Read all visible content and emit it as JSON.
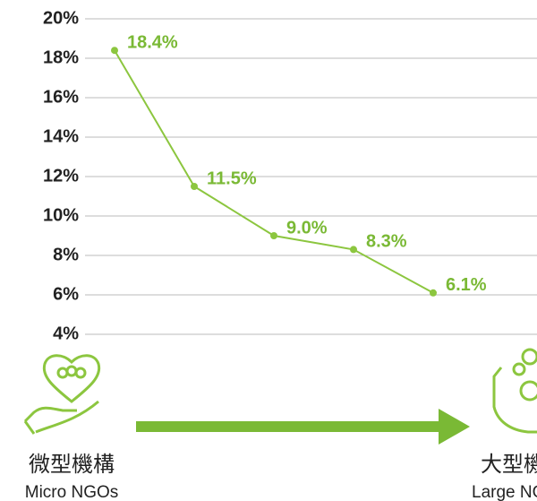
{
  "chart_data": {
    "type": "line",
    "categories": [
      null,
      null,
      null,
      null,
      null
    ],
    "series": [
      {
        "color": "#8cc63f",
        "values": [
          18.4,
          11.5,
          9.0,
          8.3,
          6.1
        ],
        "value_labels": [
          "18.4%",
          "11.5%",
          "9.0%",
          "8.3%",
          "6.1%"
        ]
      }
    ],
    "ylim": [
      4,
      20
    ],
    "yticks": [
      {
        "value": 4,
        "label": "4%"
      },
      {
        "value": 6,
        "label": "6%"
      },
      {
        "value": 8,
        "label": "8%"
      },
      {
        "value": 10,
        "label": "10%"
      },
      {
        "value": 12,
        "label": "12%"
      },
      {
        "value": 14,
        "label": "14%"
      },
      {
        "value": 16,
        "label": "16%"
      },
      {
        "value": 18,
        "label": "18%"
      },
      {
        "value": 20,
        "label": "20%"
      }
    ],
    "grid": true,
    "start_label": "微型機構",
    "start_sublabel": "Micro NGOs",
    "end_label": "大型機構",
    "end_sublabel": "Large NGOs"
  }
}
